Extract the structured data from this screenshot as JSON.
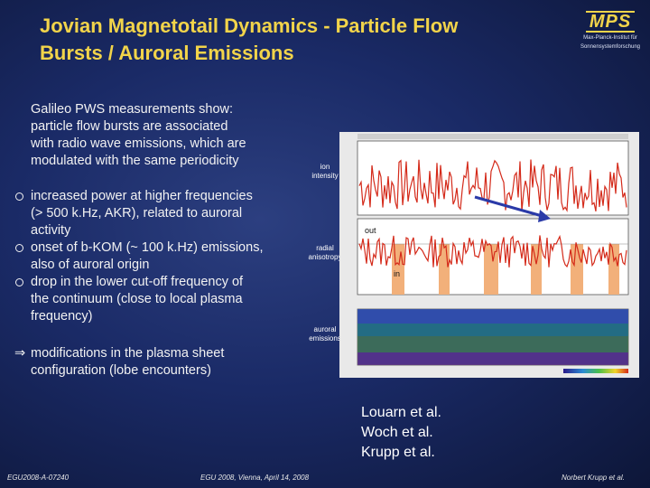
{
  "title": {
    "line1": "Jovian Magnetotail Dynamics - Particle Flow",
    "line2": "Bursts / Auroral Emissions"
  },
  "logo": {
    "mark": "MPS",
    "sub_line1": "Max-Planck-Institut für",
    "sub_line2": "Sonnensystemforschung"
  },
  "intro": {
    "lines": [
      "Galileo PWS measurements show:",
      "particle flow bursts are associated",
      "with radio wave emissions, which are",
      "modulated with the same periodicity"
    ]
  },
  "bullets": [
    {
      "lines": [
        "increased power at higher frequencies",
        "(> 500 k.Hz, AKR), related to auroral",
        "activity"
      ]
    },
    {
      "lines": [
        "onset of b-KOM (~ 100 k.Hz) emissions,",
        "also of auroral origin"
      ]
    },
    {
      "lines": [
        "drop in the lower cut-off frequency of",
        "the continuum (close to local plasma",
        "frequency)"
      ]
    }
  ],
  "conclusion": {
    "arrow": "⇒",
    "lines": [
      "modifications in the plasma sheet",
      "configuration (lobe encounters)"
    ]
  },
  "figure": {
    "labels": {
      "ion_1": "ion",
      "ion_2": "intensity",
      "radial_1": "radial",
      "radial_2": "anisotropy",
      "auroral_1": "auroral",
      "auroral_2": "emissions",
      "out": "out",
      "in": "in"
    },
    "colors": {
      "trace": "#d42a1a",
      "band": "#f2b07a",
      "arrow": "#2a3aa8"
    }
  },
  "refs": [
    "Louarn et al.",
    "Woch et al.",
    "Krupp et al."
  ],
  "footer": {
    "left": "EGU2008-A-07240",
    "center": "EGU 2008, Vienna, April 14, 2008",
    "right": "Norbert Krupp et al."
  }
}
